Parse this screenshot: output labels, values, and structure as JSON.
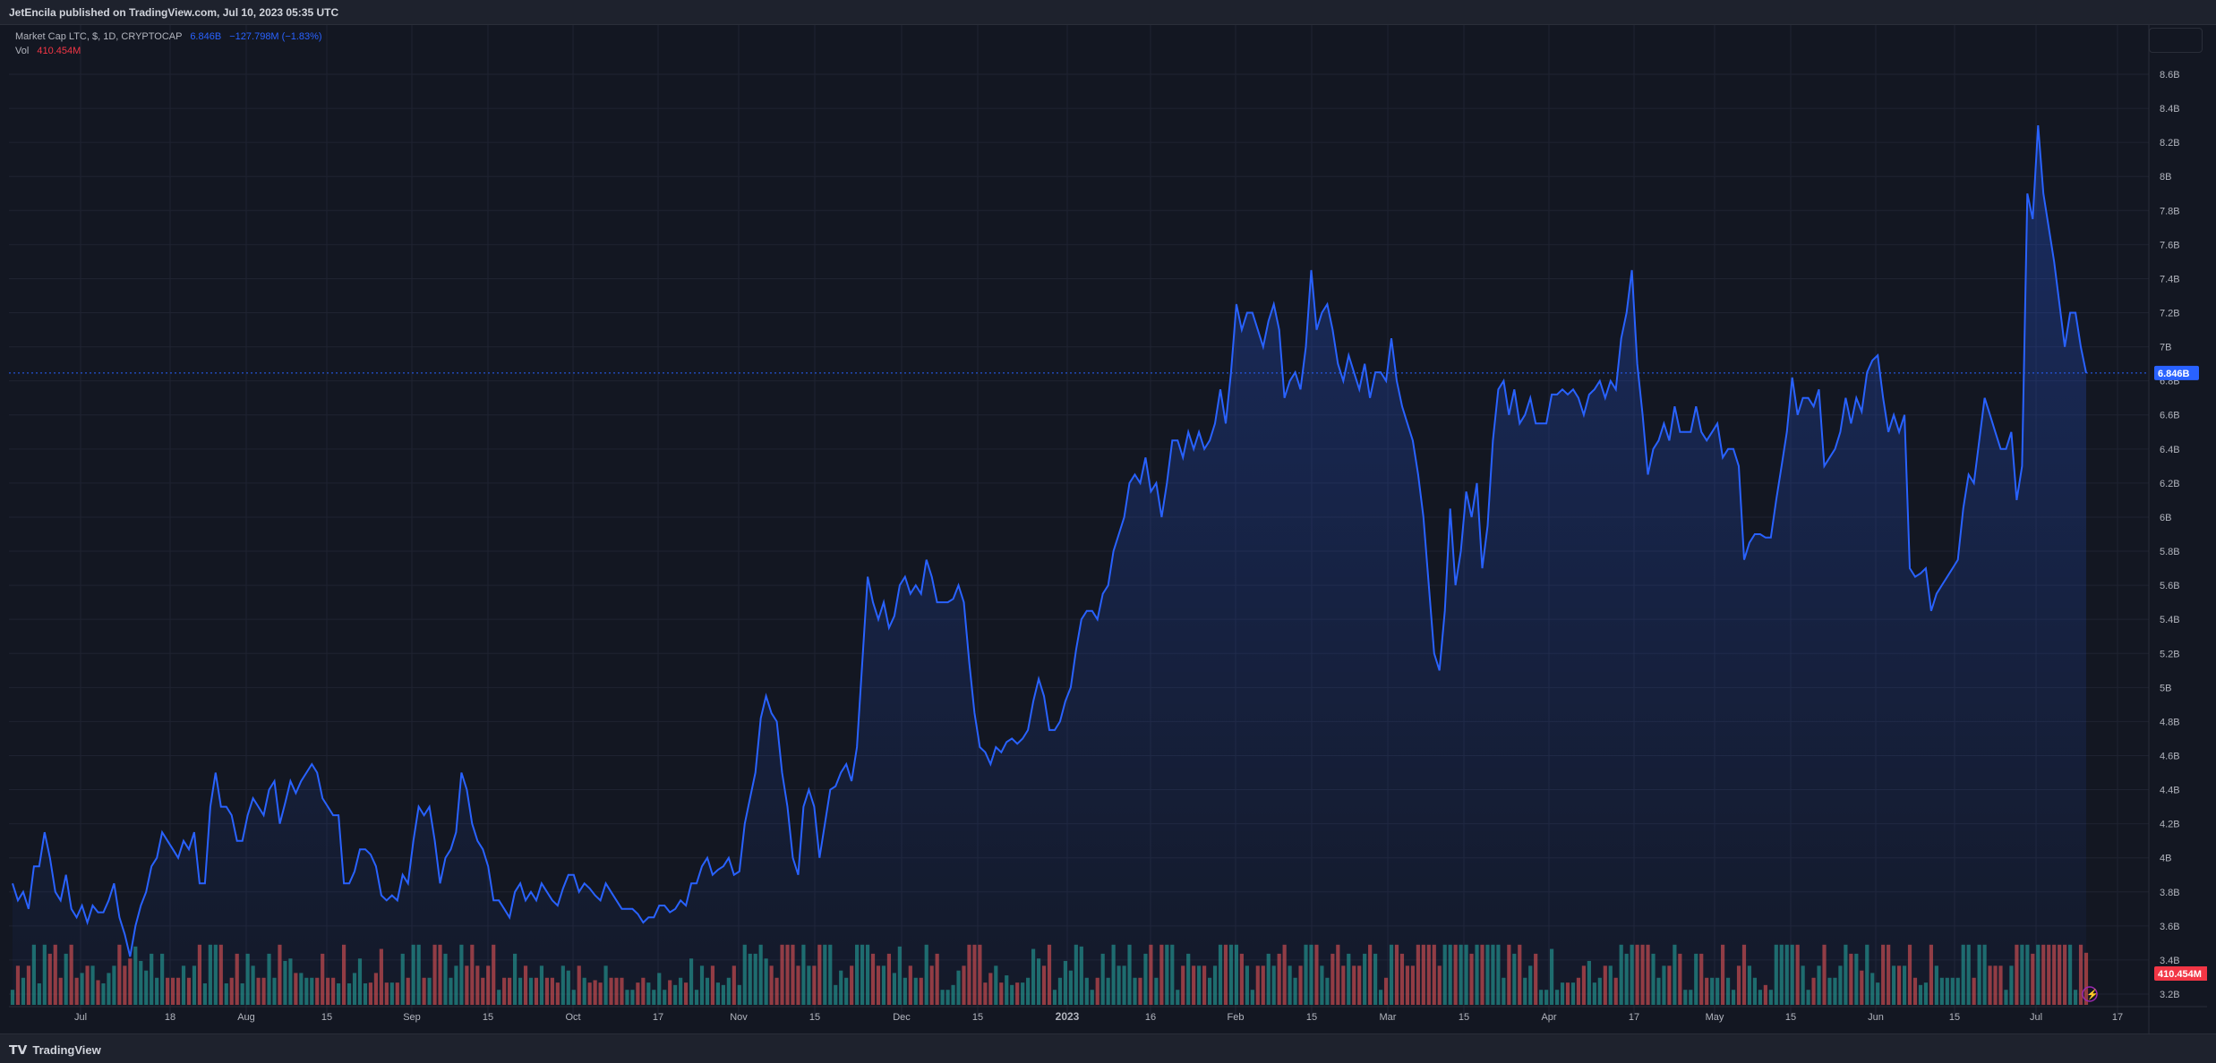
{
  "header": {
    "published": "JetEncila published on TradingView.com, Jul 10, 2023 05:35 UTC"
  },
  "footer": {
    "logo_text": "TradingView",
    "logo_icon": "tradingview-logo-icon"
  },
  "legend": {
    "symbol": "Market Cap LTC, $, 1D, CRYPTOCAP",
    "value": "6.846B",
    "change": "−127.798M (−1.83%)",
    "vol_label": "Vol",
    "vol_value": "410.454M"
  },
  "colors": {
    "line": "#2962ff",
    "up_volume": "#26a69a",
    "down_volume": "#ef5350",
    "price_badge": "#2962ff",
    "volume_badge": "#f23645"
  },
  "chart_data": {
    "type": "area",
    "title": "",
    "xlabel": "",
    "ylabel": "",
    "ylim": [
      3.1,
      8.7
    ],
    "grid": true,
    "last_value_label": "6.846B",
    "last_volume_label": "410.454M",
    "y_ticks": [
      "3.2B",
      "3.4B",
      "3.6B",
      "3.8B",
      "4B",
      "4.2B",
      "4.4B",
      "4.6B",
      "4.8B",
      "5B",
      "5.2B",
      "5.4B",
      "5.6B",
      "5.8B",
      "6B",
      "6.2B",
      "6.4B",
      "6.6B",
      "6.8B",
      "7B",
      "7.2B",
      "7.4B",
      "7.6B",
      "7.8B",
      "8B",
      "8.2B",
      "8.4B",
      "8.6B"
    ],
    "x_ticks": [
      "Jul",
      "18",
      "Aug",
      "15",
      "Sep",
      "15",
      "Oct",
      "17",
      "Nov",
      "15",
      "Dec",
      "15",
      "2023",
      "16",
      "Feb",
      "15",
      "Mar",
      "15",
      "Apr",
      "17",
      "May",
      "15",
      "Jun",
      "15",
      "Jul",
      "17"
    ],
    "series": [
      {
        "values": [
          3.85,
          3.75,
          3.8,
          3.7,
          3.95,
          3.95,
          4.15,
          4.0,
          3.8,
          3.75,
          3.9,
          3.7,
          3.65,
          3.72,
          3.62,
          3.72,
          3.68,
          3.68,
          3.75,
          3.85,
          3.65,
          3.55,
          3.42,
          3.6,
          3.72,
          3.8,
          3.95,
          4.0,
          4.15,
          4.1,
          4.05,
          4.0,
          4.1,
          4.05,
          4.15,
          3.85,
          3.85,
          4.3,
          4.5,
          4.3,
          4.3,
          4.25,
          4.1,
          4.1,
          4.25,
          4.35,
          4.3,
          4.25,
          4.4,
          4.45,
          4.2,
          4.32,
          4.45,
          4.38,
          4.45,
          4.5,
          4.55,
          4.5,
          4.35,
          4.3,
          4.25,
          4.25,
          3.85,
          3.85,
          3.92,
          4.05,
          4.05,
          4.02,
          3.95,
          3.78,
          3.75,
          3.78,
          3.75,
          3.9,
          3.85,
          4.1,
          4.3,
          4.25,
          4.3,
          4.1,
          3.85,
          4.0,
          4.05,
          4.15,
          4.5,
          4.4,
          4.2,
          4.1,
          4.05,
          3.95,
          3.75,
          3.75,
          3.7,
          3.65,
          3.8,
          3.85,
          3.75,
          3.8,
          3.75,
          3.85,
          3.8,
          3.75,
          3.72,
          3.82,
          3.9,
          3.9,
          3.8,
          3.85,
          3.82,
          3.78,
          3.75,
          3.85,
          3.8,
          3.75,
          3.7,
          3.7,
          3.7,
          3.67,
          3.62,
          3.65,
          3.65,
          3.72,
          3.72,
          3.68,
          3.7,
          3.75,
          3.72,
          3.85,
          3.85,
          3.95,
          4.0,
          3.9,
          3.93,
          3.95,
          4.0,
          3.9,
          3.92,
          4.2,
          4.35,
          4.5,
          4.82,
          4.95,
          4.85,
          4.8,
          4.5,
          4.3,
          4.0,
          3.9,
          4.3,
          4.4,
          4.3,
          4.0,
          4.2,
          4.4,
          4.42,
          4.5,
          4.55,
          4.45,
          4.65,
          5.15,
          5.65,
          5.5,
          5.4,
          5.5,
          5.35,
          5.42,
          5.6,
          5.65,
          5.55,
          5.6,
          5.55,
          5.75,
          5.65,
          5.5,
          5.5,
          5.5,
          5.52,
          5.6,
          5.5,
          5.15,
          4.85,
          4.65,
          4.62,
          4.55,
          4.65,
          4.62,
          4.68,
          4.7,
          4.67,
          4.7,
          4.75,
          4.92,
          5.05,
          4.95,
          4.75,
          4.75,
          4.8,
          4.92,
          5.0,
          5.22,
          5.4,
          5.45,
          5.45,
          5.4,
          5.55,
          5.6,
          5.8,
          5.9,
          6.0,
          6.2,
          6.25,
          6.2,
          6.35,
          6.15,
          6.2,
          6.0,
          6.2,
          6.45,
          6.45,
          6.35,
          6.5,
          6.4,
          6.5,
          6.4,
          6.45,
          6.55,
          6.75,
          6.55,
          6.85,
          7.25,
          7.1,
          7.2,
          7.2,
          7.1,
          7.0,
          7.15,
          7.25,
          7.1,
          6.7,
          6.8,
          6.85,
          6.75,
          7.0,
          7.45,
          7.1,
          7.2,
          7.25,
          7.1,
          6.9,
          6.8,
          6.95,
          6.85,
          6.75,
          6.9,
          6.7,
          6.85,
          6.85,
          6.8,
          7.05,
          6.8,
          6.65,
          6.55,
          6.45,
          6.25,
          6.0,
          5.6,
          5.2,
          5.1,
          5.45,
          6.05,
          5.6,
          5.8,
          6.15,
          6.0,
          6.2,
          5.7,
          5.95,
          6.45,
          6.75,
          6.8,
          6.6,
          6.75,
          6.55,
          6.6,
          6.7,
          6.55,
          6.55,
          6.55,
          6.72,
          6.72,
          6.75,
          6.72,
          6.75,
          6.7,
          6.6,
          6.72,
          6.75,
          6.8,
          6.7,
          6.8,
          6.75,
          7.05,
          7.2,
          7.45,
          6.9,
          6.6,
          6.25,
          6.4,
          6.45,
          6.55,
          6.45,
          6.65,
          6.5,
          6.5,
          6.5,
          6.65,
          6.5,
          6.45,
          6.5,
          6.55,
          6.35,
          6.4,
          6.4,
          6.3,
          5.75,
          5.85,
          5.9,
          5.9,
          5.88,
          5.88,
          6.1,
          6.3,
          6.5,
          6.82,
          6.6,
          6.7,
          6.7,
          6.65,
          6.75,
          6.3,
          6.35,
          6.4,
          6.5,
          6.7,
          6.55,
          6.7,
          6.62,
          6.85,
          6.92,
          6.95,
          6.7,
          6.5,
          6.6,
          6.5,
          6.6,
          5.7,
          5.65,
          5.67,
          5.7,
          5.45,
          5.55,
          5.6,
          5.65,
          5.7,
          5.75,
          6.05,
          6.25,
          6.2,
          6.45,
          6.7,
          6.6,
          6.5,
          6.4,
          6.4,
          6.5,
          6.1,
          6.3,
          7.9,
          7.75,
          8.3,
          7.9,
          7.7,
          7.5,
          7.25,
          7.0,
          7.2,
          7.2,
          7.0,
          6.846
        ]
      },
      {
        "name": "Vol",
        "values": [
          0.14,
          0.14,
          0.14,
          0.14,
          0.14,
          0.14,
          0.14,
          0.14,
          0.14,
          0.14,
          0.14,
          0.14,
          0.14,
          0.14,
          0.14,
          0.14,
          0.14,
          0.14,
          0.14,
          0.14,
          0.14,
          0.14,
          0.14,
          0.14,
          0.14,
          0.14,
          0.14,
          0.14,
          0.14,
          0.14,
          0.14,
          0.14,
          0.14,
          0.14,
          0.14,
          0.14,
          0.14,
          0.14,
          0.14,
          0.14,
          0.14,
          0.14,
          0.14,
          0.14,
          0.14,
          0.14,
          0.14,
          0.14,
          0.14,
          0.14,
          0.14,
          0.14,
          0.14,
          0.14,
          0.14,
          0.14,
          0.14,
          0.14,
          0.14,
          0.14,
          0.14,
          0.14,
          0.14,
          0.14,
          0.14,
          0.14,
          0.14,
          0.14,
          0.14,
          0.14,
          0.14,
          0.14,
          0.14,
          0.14,
          0.14,
          0.14,
          0.14,
          0.14,
          0.14,
          0.14,
          0.14,
          0.14,
          0.14,
          0.14,
          0.14,
          0.14,
          0.14,
          0.14,
          0.14,
          0.14,
          0.14,
          0.14,
          0.14,
          0.14,
          0.14,
          0.14,
          0.14,
          0.14,
          0.14,
          0.14,
          0.14,
          0.14,
          0.14,
          0.14,
          0.14,
          0.14,
          0.14,
          0.14,
          0.14,
          0.14,
          0.14,
          0.14,
          0.14,
          0.14,
          0.14,
          0.14,
          0.14,
          0.14,
          0.14,
          0.14,
          0.14,
          0.14,
          0.14,
          0.14,
          0.14,
          0.14,
          0.14,
          0.14,
          0.14,
          0.14,
          0.14,
          0.14,
          0.14,
          0.14,
          0.14,
          0.14,
          0.14,
          0.14,
          0.14,
          0.14,
          0.14,
          0.14,
          0.14,
          0.14,
          0.14,
          0.14,
          0.14,
          0.14,
          0.14,
          0.14,
          0.14,
          0.14,
          0.14,
          0.14,
          0.14,
          0.14,
          0.14,
          0.14,
          0.14,
          0.14,
          0.14,
          0.14,
          0.14,
          0.14,
          0.14,
          0.14,
          0.14,
          0.14,
          0.14,
          0.14,
          0.14,
          0.14,
          0.14,
          0.14,
          0.14,
          0.14,
          0.14,
          0.14,
          0.14,
          0.14,
          0.14,
          0.14,
          0.14,
          0.14,
          0.14,
          0.14,
          0.14,
          0.14,
          0.14,
          0.14,
          0.14,
          0.14,
          0.14,
          0.14,
          0.14,
          0.14,
          0.14,
          0.14,
          0.14,
          0.14,
          0.14,
          0.14,
          0.14,
          0.14,
          0.14,
          0.14,
          0.14,
          0.14,
          0.14,
          0.14,
          0.14,
          0.14,
          0.14,
          0.14,
          0.14,
          0.14,
          0.14,
          0.14,
          0.14,
          0.14,
          0.14,
          0.14,
          0.14,
          0.14,
          0.14,
          0.14,
          0.14,
          0.14,
          0.14,
          0.14,
          0.14,
          0.14,
          0.14,
          0.14,
          0.14,
          0.14,
          0.14,
          0.14,
          0.14,
          0.14,
          0.14,
          0.14,
          0.14,
          0.14,
          0.14,
          0.14,
          0.14,
          0.14,
          0.14,
          0.14,
          0.14,
          0.14,
          0.14,
          0.14,
          0.14,
          0.14,
          0.14,
          0.14,
          0.14,
          0.14,
          0.14,
          0.14,
          0.14,
          0.14,
          0.14,
          0.14,
          0.14,
          0.14,
          0.14,
          0.14,
          0.14,
          0.14,
          0.14,
          0.14,
          0.14,
          0.14,
          0.14,
          0.14,
          0.14,
          0.14,
          0.14,
          0.14,
          0.14,
          0.14,
          0.14,
          0.14,
          0.14,
          0.14,
          0.14,
          0.14,
          0.14,
          0.14,
          0.14,
          0.14,
          0.14,
          0.14,
          0.14,
          0.14,
          0.14,
          0.14,
          0.14,
          0.14,
          0.14,
          0.14,
          0.14,
          0.14,
          0.14,
          0.14,
          0.14,
          0.14,
          0.14,
          0.14,
          0.14,
          0.14,
          0.14,
          0.14,
          0.14,
          0.14,
          0.14,
          0.14,
          0.14,
          0.14,
          0.14,
          0.14,
          0.14,
          0.14,
          0.14,
          0.14,
          0.14,
          0.14,
          0.14,
          0.14,
          0.14,
          0.14,
          0.14,
          0.14,
          0.14,
          0.14,
          0.14,
          0.14,
          0.14,
          0.14,
          0.14,
          0.14,
          0.14,
          0.14,
          0.14,
          0.14,
          0.14,
          0.14,
          0.14,
          0.14,
          0.14,
          0.14,
          0.14,
          0.14,
          0.14,
          0.14,
          0.14,
          0.14,
          0.14,
          0.14,
          0.14,
          0.14,
          0.14,
          0.14,
          0.14,
          0.14,
          0.14,
          0.14,
          0.14,
          0.14,
          0.14,
          0.14,
          0.14,
          0.14,
          0.14,
          0.14,
          0.14,
          0.14,
          0.14,
          0.14,
          0.14,
          0.14,
          0.14,
          0.14,
          0.14,
          0.14,
          0.14,
          0.14,
          0.14,
          0.14,
          0.14,
          0.14,
          0.14,
          0.14,
          0.14,
          0.14,
          0.14,
          0.14,
          0.14,
          0.14,
          0.14,
          0.14
        ]
      }
    ]
  }
}
